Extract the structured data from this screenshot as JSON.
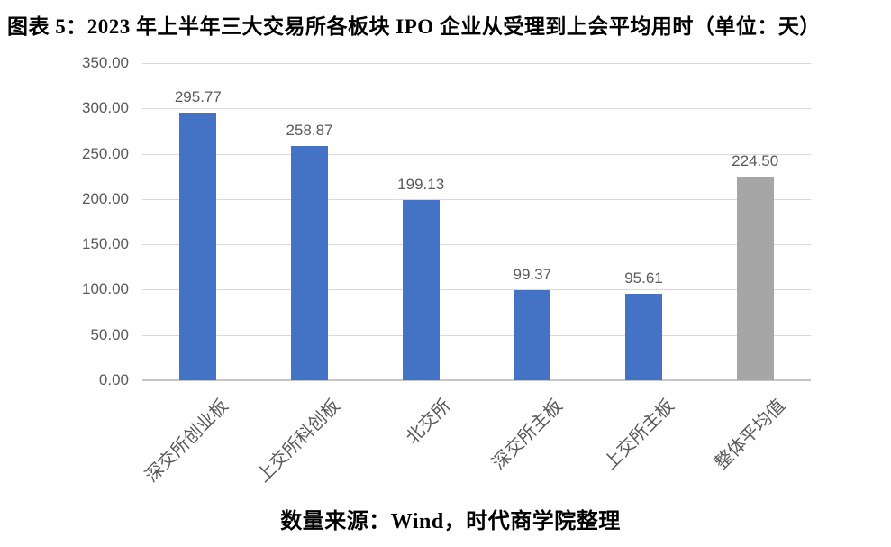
{
  "title": "图表 5：2023 年上半年三大交易所各板块 IPO 企业从受理到上会平均用时（单位：天）",
  "source_note": "数量来源：Wind，时代商学院整理",
  "chart_data": {
    "type": "bar",
    "title": "图表 5：2023 年上半年三大交易所各板块 IPO 企业从受理到上会平均用时（单位：天）",
    "categories": [
      "深交所创业板",
      "上交所科创板",
      "北交所",
      "深交所主板",
      "上交所主板",
      "整体平均值"
    ],
    "values": [
      295.77,
      258.87,
      199.13,
      99.37,
      95.61,
      224.5
    ],
    "data_labels": [
      "295.77",
      "258.87",
      "199.13",
      "99.37",
      "95.61",
      "224.50"
    ],
    "bar_colors": [
      "#4472C4",
      "#4472C4",
      "#4472C4",
      "#4472C4",
      "#4472C4",
      "#A6A6A6"
    ],
    "xlabel": "",
    "ylabel": "",
    "ylim": [
      0,
      350
    ],
    "ytick_step": 50,
    "ytick_labels_top_to_bottom": [
      "350.00",
      "300.00",
      "250.00",
      "200.00",
      "150.00",
      "100.00",
      "50.00",
      "0.00"
    ],
    "grid": true,
    "legend": false,
    "x_labels_rotation_deg": -45,
    "source": "数量来源：Wind，时代商学院整理"
  },
  "colors": {
    "bar_blue": "#4472C4",
    "bar_gray": "#A6A6A6",
    "gridline": "#D9D9D9",
    "axis_line": "#C6C6C6",
    "tick_label": "#595959",
    "title_text": "#000000",
    "background": "#FFFFFF"
  }
}
